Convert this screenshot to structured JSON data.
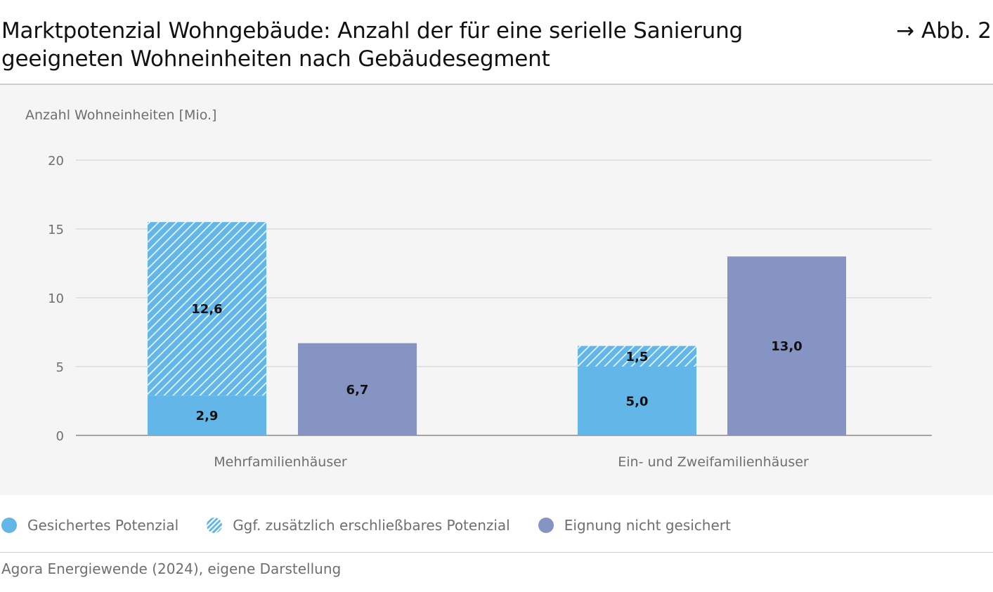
{
  "header": {
    "title": "Marktpotenzial Wohngebäude: Anzahl der für eine serielle Sanierung geeigneten Wohneinheiten nach Gebäudesegment",
    "figure_ref": "→ Abb. 2"
  },
  "chart_data": {
    "type": "bar",
    "stacked": true,
    "title": "",
    "ylabel": "Anzahl Wohneinheiten [Mio.]",
    "xlabel": "",
    "ylim": [
      0,
      20
    ],
    "yticks": [
      0,
      5,
      10,
      15,
      20
    ],
    "grid": true,
    "categories": [
      "Mehrfamilienhäuser",
      "Ein- und Zweifamilienhäuser"
    ],
    "series": [
      {
        "name": "Gesichertes Potenzial",
        "values": [
          2.9,
          5.0
        ],
        "labels": [
          "2,9",
          "5,0"
        ],
        "color": "#62b7e8",
        "hatched": false,
        "bar": "A"
      },
      {
        "name": "Ggf. zusätzlich erschließbares Potenzial",
        "values": [
          12.6,
          1.5
        ],
        "labels": [
          "12,6",
          "1,5"
        ],
        "color": "#62b7e8",
        "hatched": true,
        "bar": "A"
      },
      {
        "name": "Eignung nicht gesichert",
        "values": [
          6.7,
          13.0
        ],
        "labels": [
          "6,7",
          "13,0"
        ],
        "color": "#8594c3",
        "hatched": false,
        "bar": "B"
      }
    ],
    "legend": "bottom-left"
  },
  "footer": {
    "source": "Agora Energiewende (2024), eigene Darstellung"
  }
}
